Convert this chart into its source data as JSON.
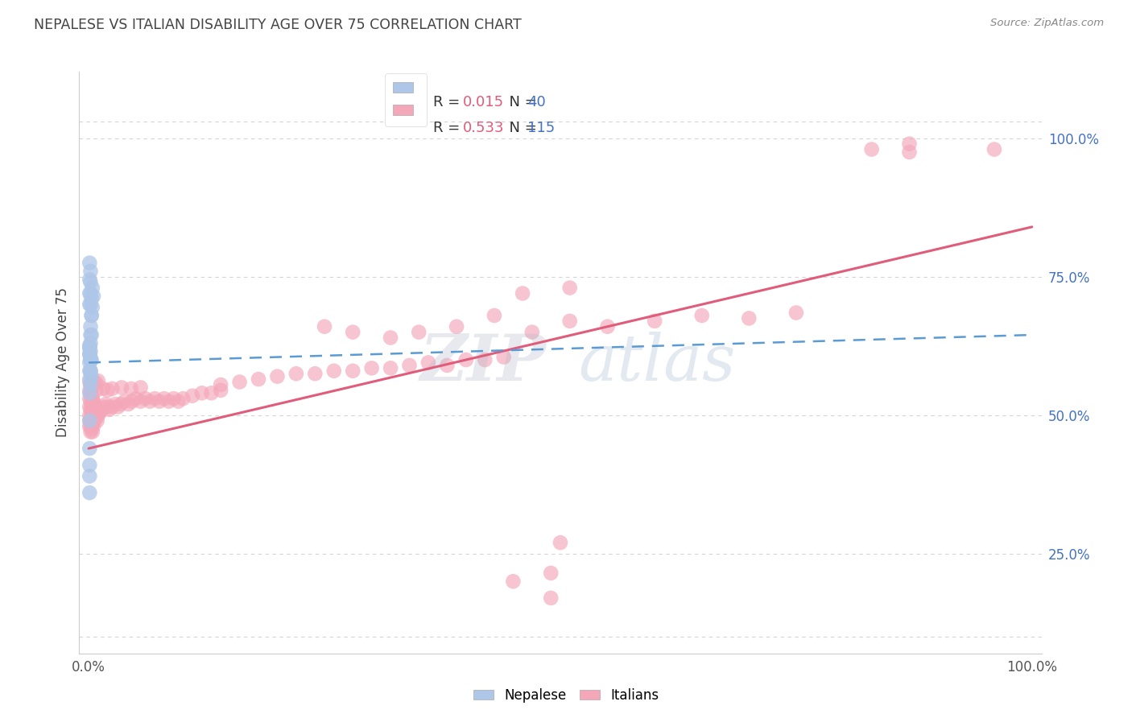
{
  "title": "NEPALESE VS ITALIAN DISABILITY AGE OVER 75 CORRELATION CHART",
  "source": "Source: ZipAtlas.com",
  "ylabel": "Disability Age Over 75",
  "background_color": "#ffffff",
  "grid_color": "#c8c8c8",
  "nepalese_color": "#aec6e8",
  "italian_color": "#f4a7b9",
  "nepalese_line_color": "#5b9bd5",
  "italian_line_color": "#e05c7a",
  "nepalese_R": 0.015,
  "nepalese_N": 40,
  "italian_R": 0.533,
  "italian_N": 115,
  "xlim": [
    -0.01,
    1.01
  ],
  "ylim": [
    0.07,
    1.12
  ],
  "right_yticks": [
    0.25,
    0.5,
    0.75,
    1.0
  ],
  "right_ytick_labels": [
    "25.0%",
    "50.0%",
    "75.0%",
    "100.0%"
  ],
  "nep_line": [
    0.0,
    0.595,
    1.0,
    0.645
  ],
  "ita_line": [
    0.0,
    0.44,
    1.0,
    0.84
  ],
  "nepalese_points": [
    [
      0.001,
      0.775
    ],
    [
      0.001,
      0.745
    ],
    [
      0.001,
      0.72
    ],
    [
      0.002,
      0.76
    ],
    [
      0.002,
      0.74
    ],
    [
      0.002,
      0.7
    ],
    [
      0.003,
      0.71
    ],
    [
      0.003,
      0.68
    ],
    [
      0.004,
      0.73
    ],
    [
      0.004,
      0.695
    ],
    [
      0.005,
      0.715
    ],
    [
      0.001,
      0.625
    ],
    [
      0.001,
      0.61
    ],
    [
      0.001,
      0.595
    ],
    [
      0.002,
      0.615
    ],
    [
      0.002,
      0.6
    ],
    [
      0.001,
      0.58
    ],
    [
      0.001,
      0.565
    ],
    [
      0.002,
      0.58
    ],
    [
      0.002,
      0.555
    ],
    [
      0.003,
      0.57
    ],
    [
      0.001,
      0.54
    ],
    [
      0.001,
      0.61
    ],
    [
      0.002,
      0.63
    ],
    [
      0.003,
      0.645
    ],
    [
      0.001,
      0.49
    ],
    [
      0.001,
      0.44
    ],
    [
      0.001,
      0.41
    ],
    [
      0.001,
      0.39
    ],
    [
      0.002,
      0.58
    ],
    [
      0.003,
      0.6
    ],
    [
      0.001,
      0.625
    ],
    [
      0.002,
      0.66
    ],
    [
      0.002,
      0.645
    ],
    [
      0.003,
      0.68
    ],
    [
      0.001,
      0.7
    ],
    [
      0.002,
      0.72
    ],
    [
      0.001,
      0.62
    ],
    [
      0.002,
      0.6
    ],
    [
      0.001,
      0.36
    ]
  ],
  "italian_points": [
    [
      0.001,
      0.545
    ],
    [
      0.001,
      0.53
    ],
    [
      0.001,
      0.515
    ],
    [
      0.001,
      0.5
    ],
    [
      0.001,
      0.49
    ],
    [
      0.001,
      0.48
    ],
    [
      0.002,
      0.54
    ],
    [
      0.002,
      0.525
    ],
    [
      0.002,
      0.51
    ],
    [
      0.002,
      0.495
    ],
    [
      0.002,
      0.48
    ],
    [
      0.002,
      0.47
    ],
    [
      0.003,
      0.535
    ],
    [
      0.003,
      0.52
    ],
    [
      0.003,
      0.505
    ],
    [
      0.003,
      0.49
    ],
    [
      0.003,
      0.475
    ],
    [
      0.004,
      0.53
    ],
    [
      0.004,
      0.515
    ],
    [
      0.004,
      0.5
    ],
    [
      0.004,
      0.485
    ],
    [
      0.004,
      0.47
    ],
    [
      0.005,
      0.525
    ],
    [
      0.005,
      0.51
    ],
    [
      0.005,
      0.495
    ],
    [
      0.005,
      0.48
    ],
    [
      0.006,
      0.52
    ],
    [
      0.006,
      0.505
    ],
    [
      0.006,
      0.49
    ],
    [
      0.007,
      0.515
    ],
    [
      0.007,
      0.5
    ],
    [
      0.008,
      0.51
    ],
    [
      0.008,
      0.495
    ],
    [
      0.009,
      0.505
    ],
    [
      0.009,
      0.49
    ],
    [
      0.01,
      0.5
    ],
    [
      0.012,
      0.505
    ],
    [
      0.014,
      0.51
    ],
    [
      0.016,
      0.515
    ],
    [
      0.018,
      0.52
    ],
    [
      0.02,
      0.515
    ],
    [
      0.022,
      0.51
    ],
    [
      0.025,
      0.515
    ],
    [
      0.028,
      0.52
    ],
    [
      0.031,
      0.515
    ],
    [
      0.034,
      0.52
    ],
    [
      0.038,
      0.525
    ],
    [
      0.042,
      0.52
    ],
    [
      0.046,
      0.525
    ],
    [
      0.05,
      0.53
    ],
    [
      0.055,
      0.525
    ],
    [
      0.06,
      0.53
    ],
    [
      0.065,
      0.525
    ],
    [
      0.07,
      0.53
    ],
    [
      0.075,
      0.525
    ],
    [
      0.08,
      0.53
    ],
    [
      0.085,
      0.525
    ],
    [
      0.09,
      0.53
    ],
    [
      0.095,
      0.525
    ],
    [
      0.1,
      0.53
    ],
    [
      0.11,
      0.535
    ],
    [
      0.12,
      0.54
    ],
    [
      0.13,
      0.54
    ],
    [
      0.14,
      0.545
    ],
    [
      0.003,
      0.55
    ],
    [
      0.008,
      0.545
    ],
    [
      0.015,
      0.548
    ],
    [
      0.02,
      0.545
    ],
    [
      0.025,
      0.548
    ],
    [
      0.035,
      0.55
    ],
    [
      0.045,
      0.548
    ],
    [
      0.055,
      0.55
    ],
    [
      0.001,
      0.56
    ],
    [
      0.002,
      0.555
    ],
    [
      0.004,
      0.558
    ],
    [
      0.006,
      0.56
    ],
    [
      0.008,
      0.558
    ],
    [
      0.01,
      0.562
    ],
    [
      0.14,
      0.555
    ],
    [
      0.16,
      0.56
    ],
    [
      0.18,
      0.565
    ],
    [
      0.2,
      0.57
    ],
    [
      0.22,
      0.575
    ],
    [
      0.24,
      0.575
    ],
    [
      0.26,
      0.58
    ],
    [
      0.28,
      0.58
    ],
    [
      0.3,
      0.585
    ],
    [
      0.32,
      0.585
    ],
    [
      0.34,
      0.59
    ],
    [
      0.36,
      0.595
    ],
    [
      0.38,
      0.59
    ],
    [
      0.4,
      0.6
    ],
    [
      0.42,
      0.6
    ],
    [
      0.44,
      0.605
    ],
    [
      0.25,
      0.66
    ],
    [
      0.28,
      0.65
    ],
    [
      0.32,
      0.64
    ],
    [
      0.35,
      0.65
    ],
    [
      0.39,
      0.66
    ],
    [
      0.43,
      0.68
    ],
    [
      0.47,
      0.65
    ],
    [
      0.51,
      0.67
    ],
    [
      0.55,
      0.66
    ],
    [
      0.6,
      0.67
    ],
    [
      0.65,
      0.68
    ],
    [
      0.7,
      0.675
    ],
    [
      0.75,
      0.685
    ],
    [
      0.46,
      0.72
    ],
    [
      0.51,
      0.73
    ],
    [
      0.83,
      0.98
    ],
    [
      0.87,
      0.975
    ],
    [
      0.87,
      0.99
    ],
    [
      0.96,
      0.98
    ],
    [
      0.45,
      0.2
    ],
    [
      0.49,
      0.215
    ],
    [
      0.5,
      0.27
    ],
    [
      0.49,
      0.17
    ]
  ]
}
